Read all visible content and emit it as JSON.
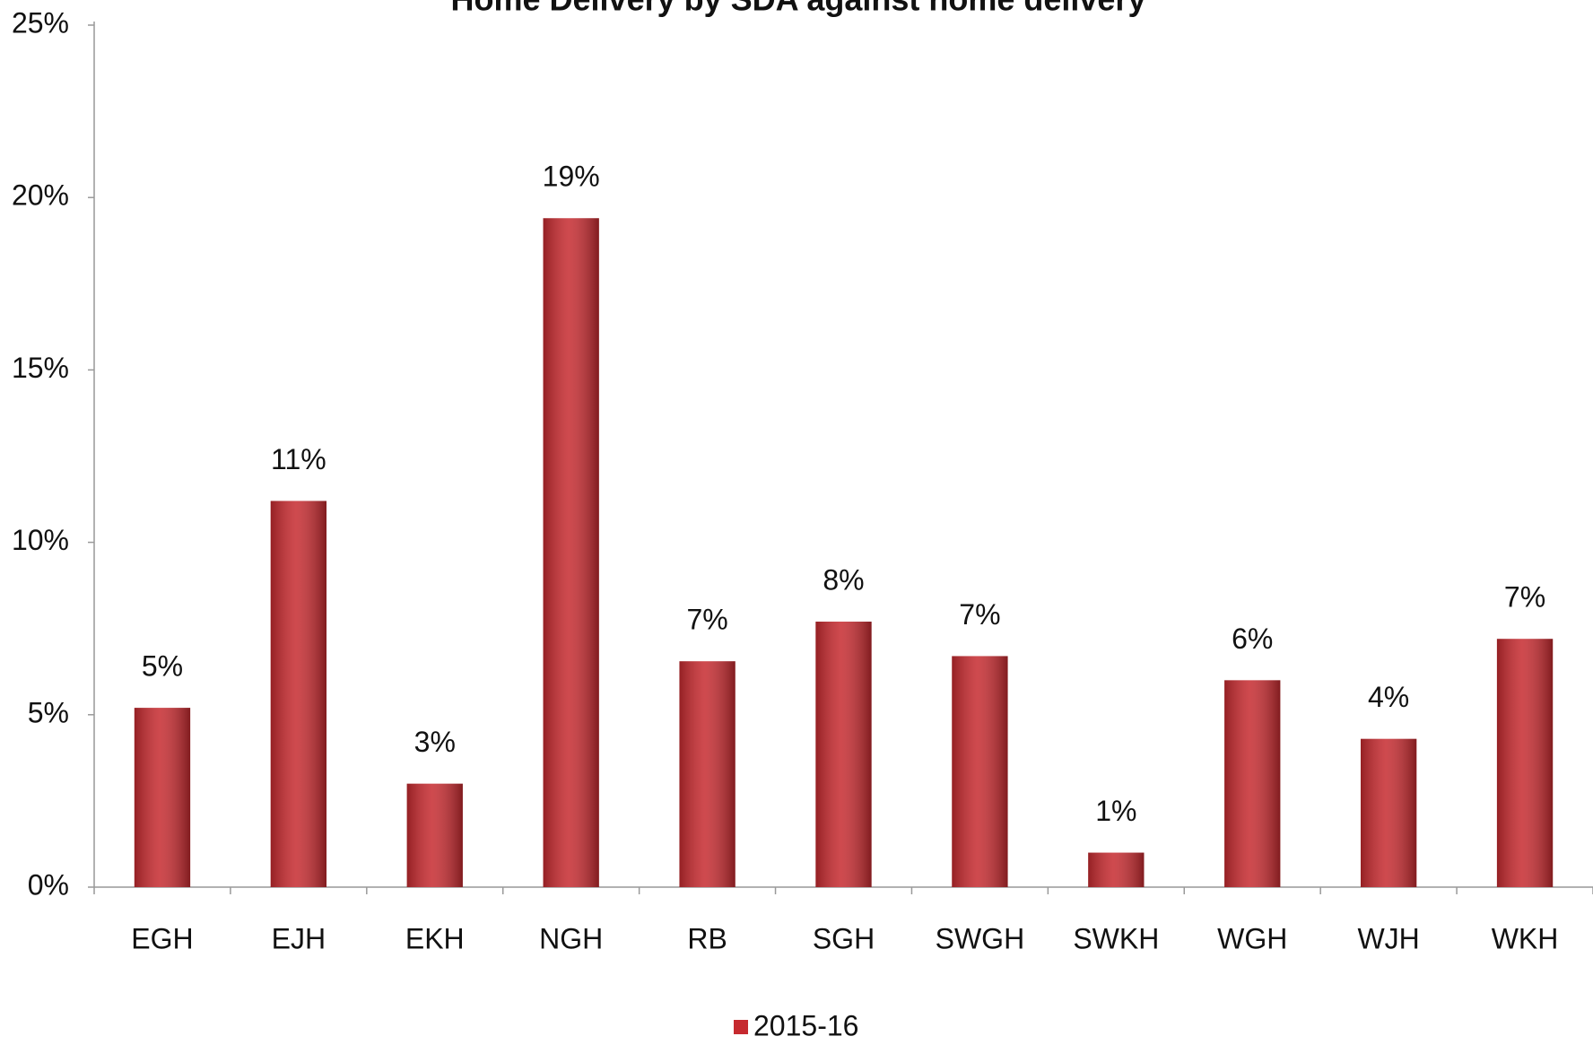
{
  "chart_data": {
    "type": "bar",
    "title": "Home Delivery by SDA against home delivery",
    "categories": [
      "EGH",
      "EJH",
      "EKH",
      "NGH",
      "RB",
      "SGH",
      "SWGH",
      "SWKH",
      "WGH",
      "WJH",
      "WKH"
    ],
    "series": [
      {
        "name": "2015-16",
        "color": "#c62a2f",
        "values": [
          5.2,
          11.2,
          3.0,
          19.4,
          6.55,
          7.7,
          6.7,
          1.0,
          6.0,
          4.3,
          7.2
        ],
        "value_labels": [
          "5%",
          "11%",
          "3%",
          "19%",
          "7%",
          "8%",
          "7%",
          "1%",
          "6%",
          "4%",
          "7%"
        ]
      }
    ],
    "ylim": [
      0,
      25
    ],
    "yticks": [
      {
        "value": 0,
        "label": "0%"
      },
      {
        "value": 5,
        "label": "5%"
      },
      {
        "value": 10,
        "label": "10%"
      },
      {
        "value": 15,
        "label": "15%"
      },
      {
        "value": 20,
        "label": "20%"
      },
      {
        "value": 25,
        "label": "25%"
      }
    ],
    "grid": false,
    "legend": "bottom"
  }
}
